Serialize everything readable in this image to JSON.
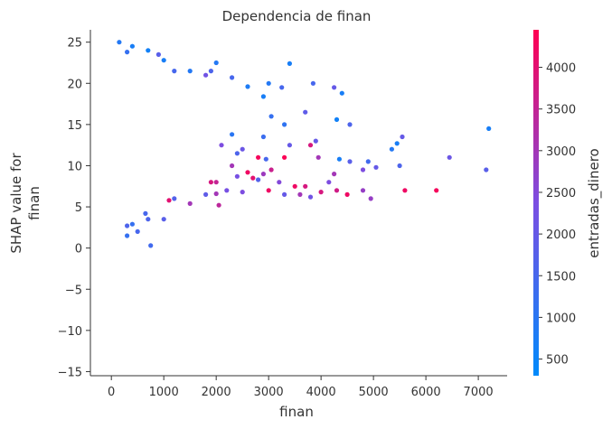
{
  "chart_data": {
    "type": "scatter",
    "title": "Dependencia de finan",
    "xlabel": "finan",
    "ylabel_lines": [
      "SHAP value for",
      "finan"
    ],
    "xlim": [
      -400,
      7550
    ],
    "ylim": [
      -15.5,
      26.5
    ],
    "x_ticks": [
      0,
      1000,
      2000,
      3000,
      4000,
      5000,
      6000,
      7000
    ],
    "y_ticks": [
      -15,
      -10,
      -5,
      0,
      5,
      10,
      15,
      20,
      25
    ],
    "y_tick_labels": [
      "−15",
      "−10",
      "−5",
      "0",
      "5",
      "10",
      "15",
      "20",
      "25"
    ],
    "grid": false,
    "colorbar": {
      "label": "entradas_dinero",
      "range": [
        300,
        4450
      ],
      "ticks": [
        500,
        1000,
        1500,
        2000,
        2500,
        3000,
        3500,
        4000
      ],
      "colors": [
        "#008afb",
        "#7b4ee2",
        "#ff0052"
      ]
    },
    "points": [
      [
        150,
        25,
        900
      ],
      [
        400,
        24.5,
        700
      ],
      [
        300,
        23.8,
        1200
      ],
      [
        700,
        24,
        600
      ],
      [
        900,
        23.5,
        1800
      ],
      [
        1000,
        22.8,
        700
      ],
      [
        1200,
        21.5,
        1500
      ],
      [
        1500,
        21.5,
        900
      ],
      [
        1800,
        21,
        2200
      ],
      [
        1900,
        21.5,
        1600
      ],
      [
        2000,
        22.5,
        900
      ],
      [
        2300,
        20.7,
        1500
      ],
      [
        2600,
        19.6,
        800
      ],
      [
        2900,
        18.4,
        700
      ],
      [
        3000,
        20,
        900
      ],
      [
        3250,
        19.5,
        1500
      ],
      [
        3400,
        22.4,
        700
      ],
      [
        3850,
        20,
        1500
      ],
      [
        4250,
        19.5,
        2000
      ],
      [
        4400,
        18.8,
        700
      ],
      [
        3050,
        16,
        1200
      ],
      [
        3700,
        16.5,
        1900
      ],
      [
        4300,
        15.6,
        600
      ],
      [
        4550,
        15,
        1600
      ],
      [
        3300,
        15,
        1100
      ],
      [
        3900,
        13,
        2000
      ],
      [
        3800,
        12.5,
        3800
      ],
      [
        3400,
        12.5,
        2000
      ],
      [
        3950,
        11,
        3000
      ],
      [
        4550,
        10.5,
        1800
      ],
      [
        4350,
        10.8,
        700
      ],
      [
        4900,
        10.5,
        1400
      ],
      [
        5350,
        12,
        900
      ],
      [
        5450,
        12.7,
        700
      ],
      [
        5550,
        13.5,
        2000
      ],
      [
        6450,
        11,
        2100
      ],
      [
        7200,
        14.5,
        700
      ],
      [
        7150,
        9.5,
        1800
      ],
      [
        5500,
        10,
        1600
      ],
      [
        5050,
        9.8,
        2000
      ],
      [
        4800,
        9.5,
        2400
      ],
      [
        4250,
        9,
        3000
      ],
      [
        4150,
        8,
        2400
      ],
      [
        3700,
        7.5,
        3800
      ],
      [
        3500,
        7.5,
        4200
      ],
      [
        3200,
        8,
        2500
      ],
      [
        3050,
        9.5,
        3600
      ],
      [
        2950,
        10.8,
        1500
      ],
      [
        3300,
        11,
        4400
      ],
      [
        2800,
        8.3,
        1700
      ],
      [
        2600,
        9.2,
        4200
      ],
      [
        2400,
        8.7,
        2300
      ],
      [
        2200,
        7,
        2300
      ],
      [
        2000,
        8,
        3500
      ],
      [
        2500,
        6.8,
        2400
      ],
      [
        3000,
        7,
        4200
      ],
      [
        3300,
        6.5,
        2000
      ],
      [
        3600,
        6.5,
        3000
      ],
      [
        3800,
        6.2,
        2200
      ],
      [
        4000,
        6.8,
        3800
      ],
      [
        4300,
        7,
        3700
      ],
      [
        4500,
        6.5,
        4200
      ],
      [
        4800,
        7,
        2800
      ],
      [
        4950,
        6,
        2800
      ],
      [
        5600,
        7,
        4200
      ],
      [
        6200,
        7,
        4300
      ],
      [
        1900,
        8,
        3800
      ],
      [
        2300,
        10,
        3000
      ],
      [
        2100,
        12.5,
        2400
      ],
      [
        2500,
        12,
        2100
      ],
      [
        2300,
        13.8,
        1000
      ],
      [
        2400,
        11.5,
        1600
      ],
      [
        2900,
        13.5,
        1300
      ],
      [
        2800,
        11,
        4300
      ],
      [
        2900,
        9,
        2900
      ],
      [
        2700,
        8.5,
        4000
      ],
      [
        1800,
        6.5,
        1900
      ],
      [
        1200,
        6,
        1700
      ],
      [
        1100,
        5.8,
        4000
      ],
      [
        2000,
        6.6,
        3000
      ],
      [
        2050,
        5.2,
        3400
      ],
      [
        1500,
        5.4,
        3000
      ],
      [
        700,
        3.5,
        1600
      ],
      [
        300,
        2.7,
        1600
      ],
      [
        1000,
        3.5,
        1800
      ],
      [
        750,
        0.3,
        1400
      ],
      [
        500,
        2,
        1500
      ],
      [
        300,
        1.5,
        1200
      ],
      [
        400,
        2.9,
        1200
      ],
      [
        650,
        4.2,
        1500
      ]
    ]
  }
}
